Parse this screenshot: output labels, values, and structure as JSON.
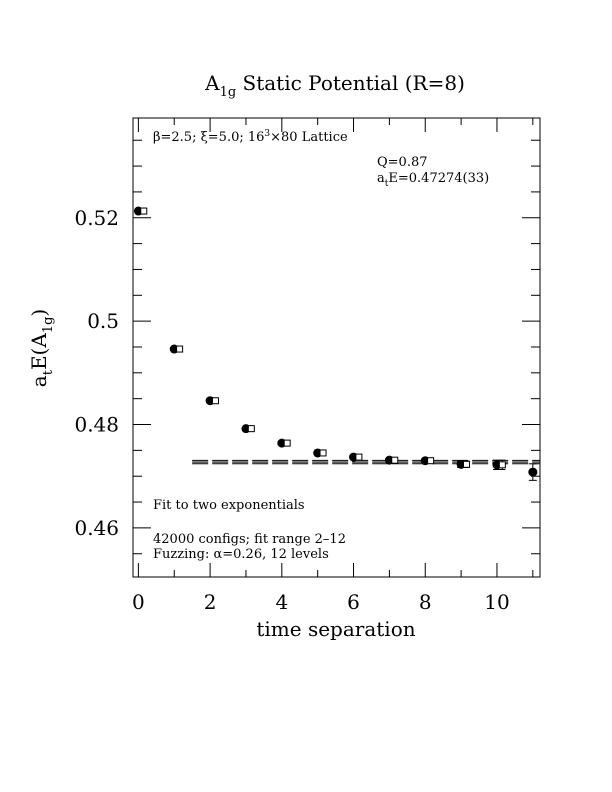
{
  "chart_data": {
    "type": "scatter",
    "title": {
      "main": "A",
      "sub": "1g",
      "rest": " Static Potential (R=8)"
    },
    "xlabel": "time separation",
    "ylabel": {
      "pre": "a",
      "pre_sub": "t",
      "mid": "E(A",
      "mid_sub": "1g",
      "post": ")"
    },
    "xlim": [
      -0.15,
      11.2
    ],
    "ylim": [
      0.4505,
      0.5393
    ],
    "xticks": [
      0,
      2,
      4,
      6,
      8,
      10
    ],
    "yticks": [
      0.46,
      0.48,
      0.5,
      0.52
    ],
    "ytick_labels": [
      "0.46",
      "0.48",
      "0.5",
      "0.52"
    ],
    "annotations": {
      "lattice": {
        "beta": "β",
        "a": "=2.5; ",
        "xi": "ξ",
        "b": "=5.0; 16",
        "sup": "3",
        "c": "×80 Lattice"
      },
      "q": "Q=0.87",
      "energy": {
        "pre": "a",
        "sub": "t",
        "post": "E=0.47274(33)"
      },
      "fit_type": "Fit to two exponentials",
      "configs": "42000 configs; fit range 2–12",
      "fuzzing": {
        "pre": "Fuzzing: ",
        "alpha": "α",
        "post": "=0.26, 12 levels"
      }
    },
    "fit": {
      "value": 0.47274,
      "error": 0.00033,
      "x_range": [
        1.5,
        11.2
      ]
    },
    "series": [
      {
        "x": [
          0,
          1,
          2,
          3,
          4,
          5,
          6,
          7,
          8,
          9,
          10,
          11
        ],
        "y": [
          0.5213,
          0.4946,
          0.4846,
          0.4792,
          0.4764,
          0.4745,
          0.4737,
          0.4731,
          0.473,
          0.4723,
          0.4722,
          0.4708
        ],
        "err": [
          0.0001,
          0.0001,
          0.0001,
          0.0001,
          0.0001,
          0.0001,
          0.00015,
          0.0002,
          0.0003,
          0.0006,
          0.0009,
          0.0016
        ]
      },
      {
        "x": [
          0.15,
          1.15,
          2.15,
          3.15,
          4.15,
          5.15,
          6.15,
          7.15,
          8.15,
          9.15,
          10.15
        ],
        "y": [
          0.5213,
          0.4946,
          0.4846,
          0.4792,
          0.4764,
          0.4745,
          0.4737,
          0.4731,
          0.473,
          0.4723,
          0.4722
        ],
        "err": [
          0.0001,
          0.0001,
          0.0001,
          0.0001,
          0.0001,
          0.0001,
          0.00015,
          0.0002,
          0.0003,
          0.0006,
          0.0009
        ]
      }
    ]
  }
}
